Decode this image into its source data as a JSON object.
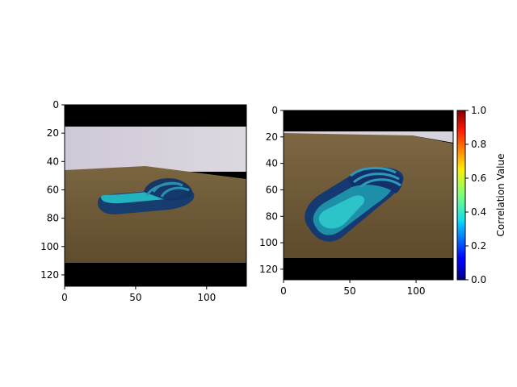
{
  "chart_data": [
    {
      "type": "image",
      "description_ok": false,
      "x_ticks": [
        0,
        50,
        100
      ],
      "y_ticks": [
        0,
        20,
        40,
        60,
        80,
        100,
        120
      ],
      "xlim": [
        0,
        128
      ],
      "ylim": [
        128,
        0
      ],
      "black_bands": [
        [
          0,
          15
        ],
        [
          111,
          128
        ]
      ],
      "image_rows": [
        15,
        111
      ]
    },
    {
      "type": "image",
      "description_ok": false,
      "x_ticks": [
        0,
        50,
        100
      ],
      "y_ticks": [
        0,
        20,
        40,
        60,
        80,
        100,
        120
      ],
      "xlim": [
        0,
        128
      ],
      "ylim": [
        128,
        0
      ],
      "black_bands": [
        [
          0,
          15
        ],
        [
          111,
          128
        ]
      ],
      "image_rows": [
        15,
        111
      ]
    },
    {
      "type": "colorbar",
      "label": "Correlation Value",
      "ticks": [
        "0.0",
        "0.2",
        "0.4",
        "0.6",
        "0.8",
        "1.0"
      ],
      "range": [
        0,
        1
      ],
      "colormap": "jet"
    }
  ],
  "colors": {
    "floor": "#6e5a36",
    "wall": "#d6d0da",
    "shoe_dark": "#10326e",
    "shoe_mid": "#1a7c9a",
    "shoe_light": "#26c0c8",
    "band": "#000000"
  }
}
